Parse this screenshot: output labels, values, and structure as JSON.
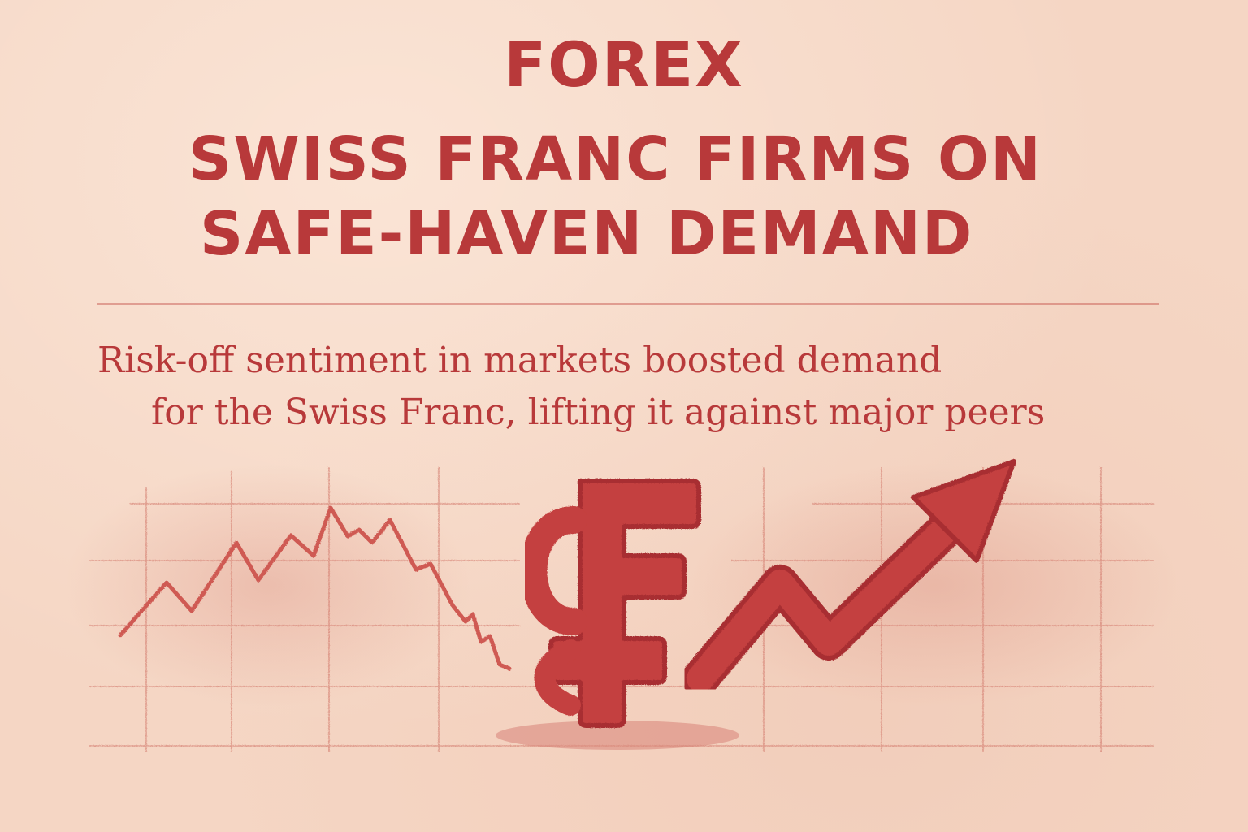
{
  "kicker": "FOREX",
  "headline": {
    "line1": "SWISS FRANC FIRMS ON",
    "line2": "SAFE-HAVEN DEMAND"
  },
  "subhead": {
    "line1": "Risk-off sentiment in markets boosted demand",
    "line2": "for the Swiss Franc, lifting it against major peers"
  },
  "illustration": {
    "left_chart_icon": "falling-zigzag-line",
    "center_icon": "swiss-franc-symbol",
    "right_chart_icon": "rising-arrow"
  },
  "colors": {
    "background": "#f5d6c4",
    "accent": "#b8393a",
    "grid": "#d98a7c"
  }
}
